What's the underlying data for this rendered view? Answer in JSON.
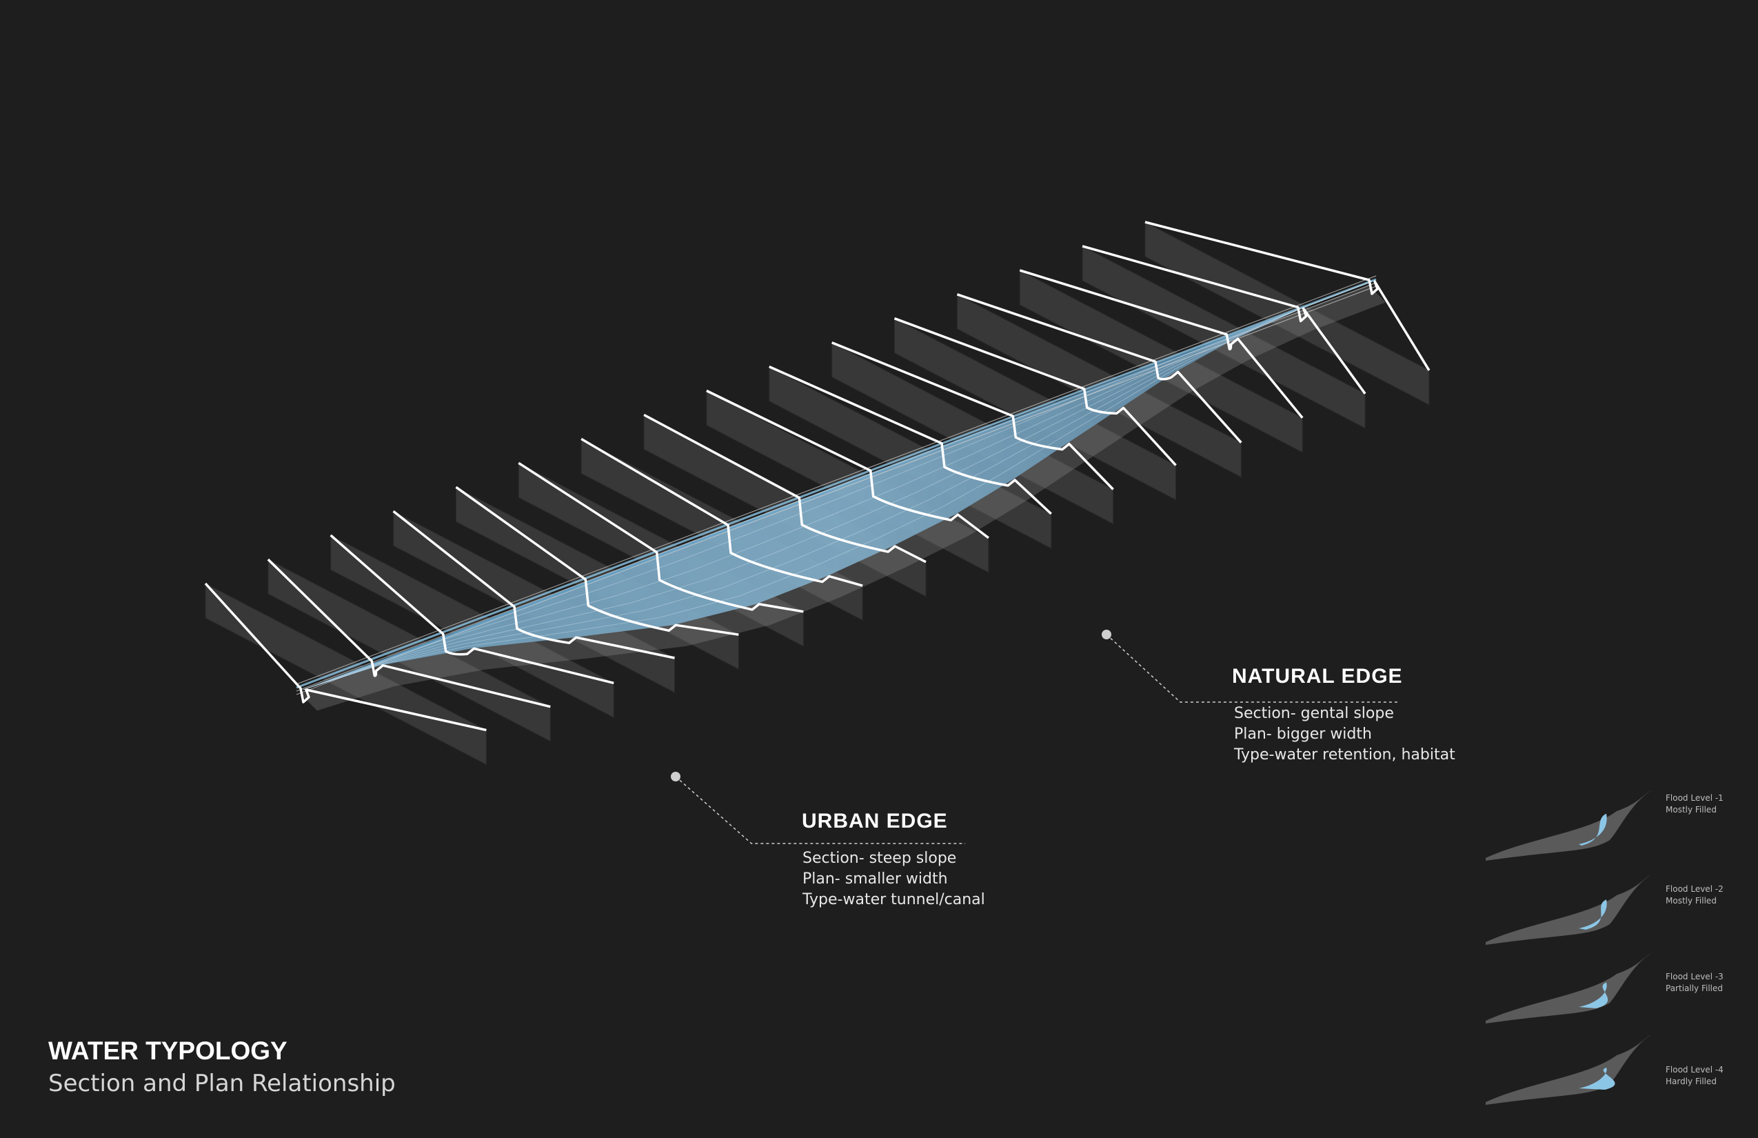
{
  "title": "WATER TYPOLOGY",
  "subtitle": "Section and Plan Relationship",
  "callouts": {
    "natural": {
      "title": "NATURAL EDGE",
      "lines": [
        "Section- gental slope",
        "Plan- bigger width",
        "Type-water retention, habitat"
      ]
    },
    "urban": {
      "title": "URBAN EDGE",
      "lines": [
        "Section- steep slope",
        "Plan- smaller width",
        "Type-water tunnel/canal"
      ]
    }
  },
  "legend": [
    {
      "level": "Flood Level -1",
      "state": "Mostly Filled"
    },
    {
      "level": "Flood Level -2",
      "state": "Mostly Filled"
    },
    {
      "level": "Flood Level -3",
      "state": "Partially Filled"
    },
    {
      "level": "Flood Level -4",
      "state": "Hardly Filled"
    }
  ],
  "colors": {
    "background": "#1e1e1e",
    "panel": "#383838",
    "panel_top": "#2c2c2c",
    "water": "#8cc6e6",
    "water_dark": "#4a8eb8",
    "line": "#ffffff",
    "legend_shape": "#5a5a5a"
  }
}
